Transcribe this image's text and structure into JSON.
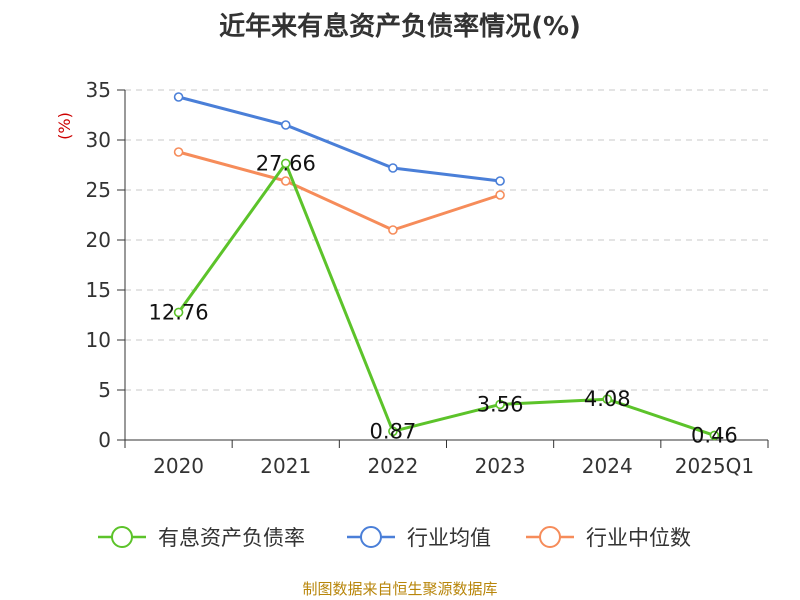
{
  "chart_data": {
    "type": "line",
    "title": "近年来有息资产负债率情况(%)",
    "ylabel": "(%)",
    "categories": [
      "2020",
      "2021",
      "2022",
      "2023",
      "2024",
      "2025Q1"
    ],
    "ylim": [
      0,
      35
    ],
    "yticks": [
      0,
      5,
      10,
      15,
      20,
      25,
      30,
      35
    ],
    "grid": true,
    "legend_position": "bottom",
    "series": [
      {
        "name": "有息资产负债率",
        "color": "#5cc32a",
        "values": [
          12.76,
          27.66,
          0.87,
          3.56,
          4.08,
          0.46
        ],
        "labels": [
          "12.76",
          "27.66",
          "0.87",
          "3.56",
          "4.08",
          "0.46"
        ]
      },
      {
        "name": "行业均值",
        "color": "#4a7fd8",
        "values": [
          34.3,
          31.5,
          27.2,
          25.9,
          null,
          null
        ]
      },
      {
        "name": "行业中位数",
        "color": "#f68c5a",
        "values": [
          28.8,
          25.9,
          21.0,
          24.5,
          null,
          null
        ]
      }
    ]
  },
  "footer": "制图数据来自恒生聚源数据库"
}
